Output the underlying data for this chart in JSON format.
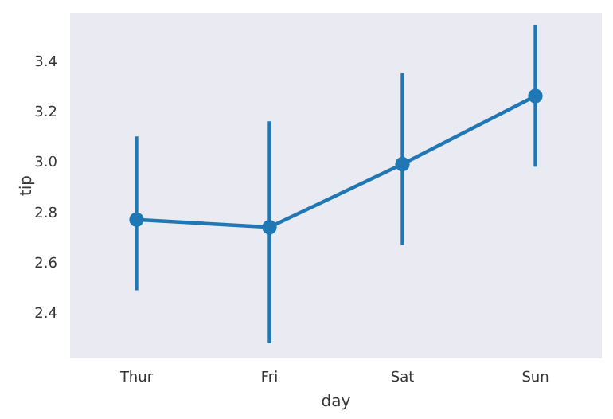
{
  "chart_data": {
    "type": "line",
    "xlabel": "day",
    "ylabel": "tip",
    "categories": [
      "Thur",
      "Fri",
      "Sat",
      "Sun"
    ],
    "series": [
      {
        "color": "#1f77b4",
        "values": [
          2.77,
          2.74,
          2.99,
          3.26
        ],
        "errors": [
          [
            2.49,
            3.1
          ],
          [
            2.28,
            3.16
          ],
          [
            2.67,
            3.35
          ],
          [
            2.98,
            3.54
          ]
        ]
      }
    ],
    "ylim": [
      2.22,
      3.59
    ],
    "yticks": [
      2.4,
      2.6,
      2.8,
      {
        "value": 3,
        "label": "3.0"
      },
      3.2,
      3.4
    ],
    "grid": false,
    "marker": "circle",
    "line_style": "solid"
  }
}
